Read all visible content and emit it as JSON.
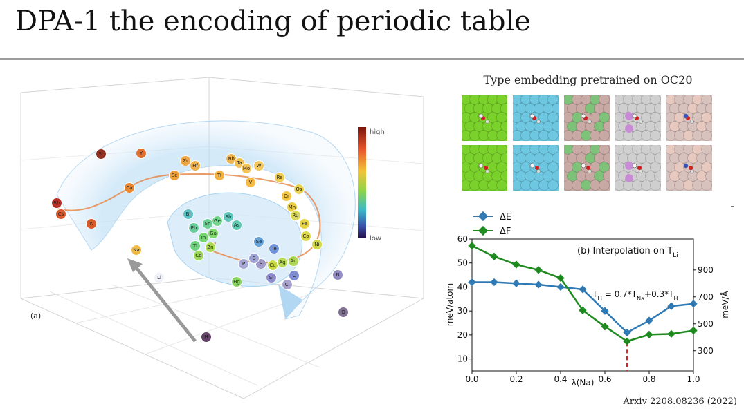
{
  "slide": {
    "title": "DPA-1 the encoding of periodic table",
    "citation": "Arxiv 2208.08236 (2022)"
  },
  "periodic_figure": {
    "panel_label": "(a)",
    "colorbar": {
      "high_label": "high",
      "low_label": "low"
    },
    "colors": {
      "high": "#8b1a0d",
      "mid": "#f2c43a",
      "low": "#2a1a5e"
    },
    "elements": [
      {
        "symbol": "Rb",
        "color": "#b5241a"
      },
      {
        "symbol": "Cs",
        "color": "#d65124"
      },
      {
        "symbol": "K",
        "color": "#d9531e"
      },
      {
        "symbol": "Na",
        "color": "#f2b636"
      },
      {
        "symbol": "Li",
        "color": "#eef2f8"
      },
      {
        "symbol": "H",
        "color": "#5a3a5e"
      },
      {
        "symbol": "Sr",
        "color": "#8e2418"
      },
      {
        "symbol": "Ca",
        "color": "#e8822a"
      },
      {
        "symbol": "Y",
        "color": "#e06a2a"
      },
      {
        "symbol": "Sc",
        "color": "#ef9a30"
      },
      {
        "symbol": "Zr",
        "color": "#f0a23a"
      },
      {
        "symbol": "Hf",
        "color": "#f2ae40"
      },
      {
        "symbol": "Ti",
        "color": "#f2ae3a"
      },
      {
        "symbol": "Nb",
        "color": "#f4b448"
      },
      {
        "symbol": "Ta",
        "color": "#f4bc4e"
      },
      {
        "symbol": "V",
        "color": "#f3b83c"
      },
      {
        "symbol": "Mo",
        "color": "#f5c04a"
      },
      {
        "symbol": "W",
        "color": "#f6c652"
      },
      {
        "symbol": "Cr",
        "color": "#f4c23c"
      },
      {
        "symbol": "Re",
        "color": "#f0cc48"
      },
      {
        "symbol": "Mn",
        "color": "#eacb3a"
      },
      {
        "symbol": "Os",
        "color": "#e8d24c"
      },
      {
        "symbol": "Fe",
        "color": "#e3d23c"
      },
      {
        "symbol": "Co",
        "color": "#dcd640"
      },
      {
        "symbol": "Ru",
        "color": "#d8d84c"
      },
      {
        "symbol": "Ni",
        "color": "#cfd83e"
      },
      {
        "symbol": "Cu",
        "color": "#c6d83e"
      },
      {
        "symbol": "Ag",
        "color": "#b8da52"
      },
      {
        "symbol": "Au",
        "color": "#acd64e"
      },
      {
        "symbol": "Zn",
        "color": "#aadc48"
      },
      {
        "symbol": "Cd",
        "color": "#98d64e"
      },
      {
        "symbol": "Hg",
        "color": "#86d45a"
      },
      {
        "symbol": "Ga",
        "color": "#7cd666"
      },
      {
        "symbol": "In",
        "color": "#72d46e"
      },
      {
        "symbol": "Tl",
        "color": "#68d276"
      },
      {
        "symbol": "Ge",
        "color": "#6cd486"
      },
      {
        "symbol": "Sn",
        "color": "#66d090"
      },
      {
        "symbol": "Pb",
        "color": "#60cc96"
      },
      {
        "symbol": "As",
        "color": "#5ccab0"
      },
      {
        "symbol": "Sb",
        "color": "#58c6ba"
      },
      {
        "symbol": "Bi",
        "color": "#56c0c4"
      },
      {
        "symbol": "Se",
        "color": "#5e9ed8"
      },
      {
        "symbol": "Te",
        "color": "#6a8edc"
      },
      {
        "symbol": "C",
        "color": "#7a86d4"
      },
      {
        "symbol": "Si",
        "color": "#8a86cc"
      },
      {
        "symbol": "N",
        "color": "#8c84c0"
      },
      {
        "symbol": "O",
        "color": "#7b6a8e"
      },
      {
        "symbol": "Cl",
        "color": "#a49ccc"
      },
      {
        "symbol": "B",
        "color": "#9c94c8"
      },
      {
        "symbol": "S",
        "color": "#9aa0d4"
      },
      {
        "symbol": "P",
        "color": "#a6a6d6"
      }
    ]
  },
  "oc20": {
    "title": "Type embedding pretrained on OC20",
    "tile_colors": [
      "#7bd12b",
      "#6ec7e0",
      "#c9a9a4",
      "#cfcfcf",
      "#d8c2bd"
    ],
    "accent_colors": [
      "#7bd12b",
      "#6ec7e0",
      "#7ec27a",
      "#c88bd6",
      "#e8c9c0"
    ]
  },
  "chart_data": {
    "type": "line",
    "title": "(b) Interpolation on T",
    "title_subscript": "Li",
    "x": [
      0.0,
      0.1,
      0.2,
      0.3,
      0.4,
      0.5,
      0.6,
      0.7,
      0.8,
      0.9,
      1.0
    ],
    "xlabel": "λ(Na)",
    "ylabel": "meV/atom",
    "ylabel_right": "meV/Å",
    "xlim": [
      0.0,
      1.0
    ],
    "ylim": [
      5,
      60
    ],
    "ylim_right": [
      150,
      1130
    ],
    "xticks": [
      "0.0",
      "0.2",
      "0.4",
      "0.6",
      "0.8",
      "1.0"
    ],
    "yticks": [
      "10",
      "20",
      "30",
      "40",
      "50",
      "60"
    ],
    "yticks_right": [
      "300",
      "500",
      "700",
      "900"
    ],
    "series": [
      {
        "name": "ΔE",
        "axis": "left",
        "color": "#2f7ab4",
        "values": [
          42,
          42,
          41.5,
          41,
          40,
          39,
          30,
          21,
          26,
          32,
          33
        ]
      },
      {
        "name": "ΔF",
        "axis": "right",
        "color": "#1f8a1f",
        "values": [
          1080,
          1000,
          940,
          900,
          840,
          600,
          480,
          370,
          420,
          425,
          450
        ]
      }
    ],
    "annotation": {
      "x": 0.7,
      "color": "#e02020",
      "text_lhs": "T",
      "text_lhs_sub": "Li",
      "text_mid": " = 0.7*T",
      "text_mid_sub": "Na",
      "text_rhs": "+0.3*T",
      "text_rhs_sub": "H"
    },
    "legend": "top-left",
    "grid": false
  }
}
